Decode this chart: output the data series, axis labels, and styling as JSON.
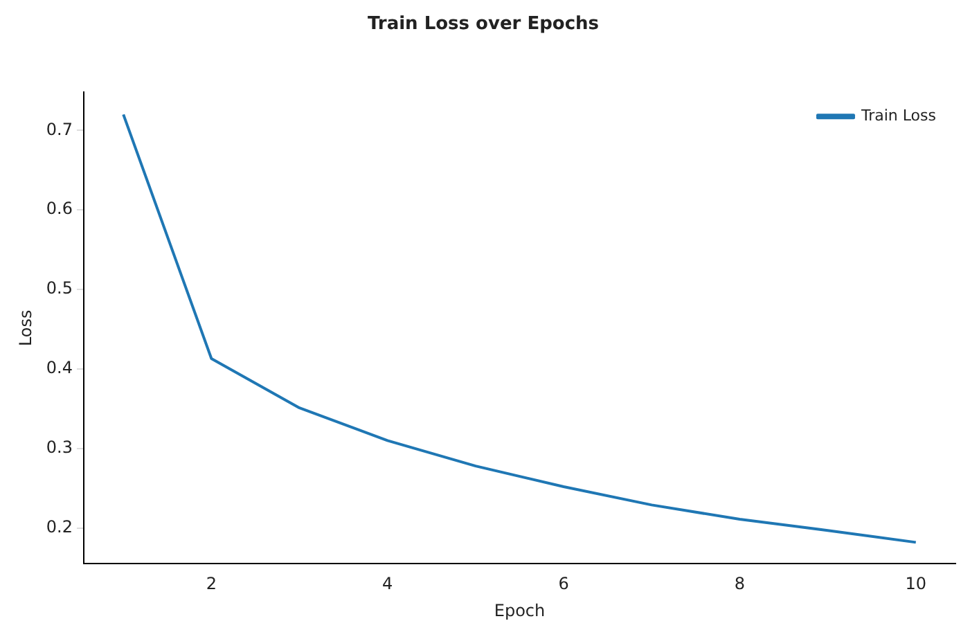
{
  "chart_data": {
    "type": "line",
    "title": "Train Loss over Epochs",
    "xlabel": "Epoch",
    "ylabel": "Loss",
    "x": [
      1,
      2,
      3,
      4,
      5,
      6,
      7,
      8,
      9,
      10
    ],
    "series": [
      {
        "name": "Train Loss",
        "color": "#1f77b4",
        "values": [
          0.72,
          0.413,
          0.351,
          0.31,
          0.278,
          0.252,
          0.229,
          0.211,
          0.197,
          0.182
        ]
      }
    ],
    "xlim": [
      0.55,
      10.45
    ],
    "xticks": [
      2,
      4,
      6,
      8,
      10
    ],
    "ylim": [
      0.155,
      0.748
    ],
    "yticks": [
      0.2,
      0.3,
      0.4,
      0.5,
      0.6,
      0.7
    ],
    "grid": false,
    "legend": "top right",
    "marker": "none",
    "line_style": "solid"
  }
}
